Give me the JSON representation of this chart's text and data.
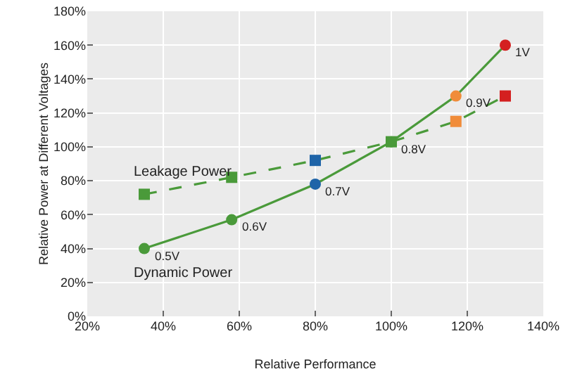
{
  "chart_data": {
    "type": "line",
    "xlabel": "Relative Performance",
    "ylabel": "Relative Power at Different Voltages",
    "x": [
      35,
      58,
      80,
      100,
      117,
      130
    ],
    "series": [
      {
        "name": "Leakage Power",
        "color": "#4a9a3a",
        "line_style": "dashed",
        "marker": "square",
        "colors": [
          "#4a9a3a",
          "#4a9a3a",
          "#1f64a8",
          "#4a9a3a",
          "#f08c3a",
          "#d42020"
        ],
        "values": [
          72,
          82,
          92,
          103,
          115,
          130
        ]
      },
      {
        "name": "Dynamic Power",
        "color": "#4a9a3a",
        "line_style": "solid",
        "marker": "circle",
        "colors": [
          "#4a9a3a",
          "#4a9a3a",
          "#1f64a8",
          "#4a9a3a",
          "#f08c3a",
          "#d42020"
        ],
        "values": [
          40,
          57,
          78,
          103,
          130,
          160
        ]
      }
    ],
    "annotations": [
      {
        "text": "0.5V",
        "x": 35,
        "y": 40
      },
      {
        "text": "0.6V",
        "x": 58,
        "y": 57
      },
      {
        "text": "0.7V",
        "x": 80,
        "y": 78
      },
      {
        "text": "0.8V",
        "x": 100,
        "y": 103
      },
      {
        "text": "0.9V",
        "x": 117,
        "y": 130
      },
      {
        "text": "1V",
        "x": 130,
        "y": 160
      }
    ],
    "xlim": [
      20,
      140
    ],
    "xticks": [
      {
        "value": 20,
        "label": "20%"
      },
      {
        "value": 40,
        "label": "40%"
      },
      {
        "value": 60,
        "label": "60%"
      },
      {
        "value": 80,
        "label": "80%"
      },
      {
        "value": 100,
        "label": "100%"
      },
      {
        "value": 120,
        "label": "120%"
      },
      {
        "value": 140,
        "label": "140%"
      }
    ],
    "ylim": [
      0,
      180
    ],
    "yticks": [
      {
        "value": 0,
        "label": "0%"
      },
      {
        "value": 20,
        "label": "20%"
      },
      {
        "value": 40,
        "label": "40%"
      },
      {
        "value": 60,
        "label": "60%"
      },
      {
        "value": 80,
        "label": "80%"
      },
      {
        "value": 100,
        "label": "100%"
      },
      {
        "value": 120,
        "label": "120%"
      },
      {
        "value": 140,
        "label": "140%"
      },
      {
        "value": 160,
        "label": "160%"
      },
      {
        "value": 180,
        "label": "180%"
      }
    ],
    "grid": true,
    "legend": false
  }
}
